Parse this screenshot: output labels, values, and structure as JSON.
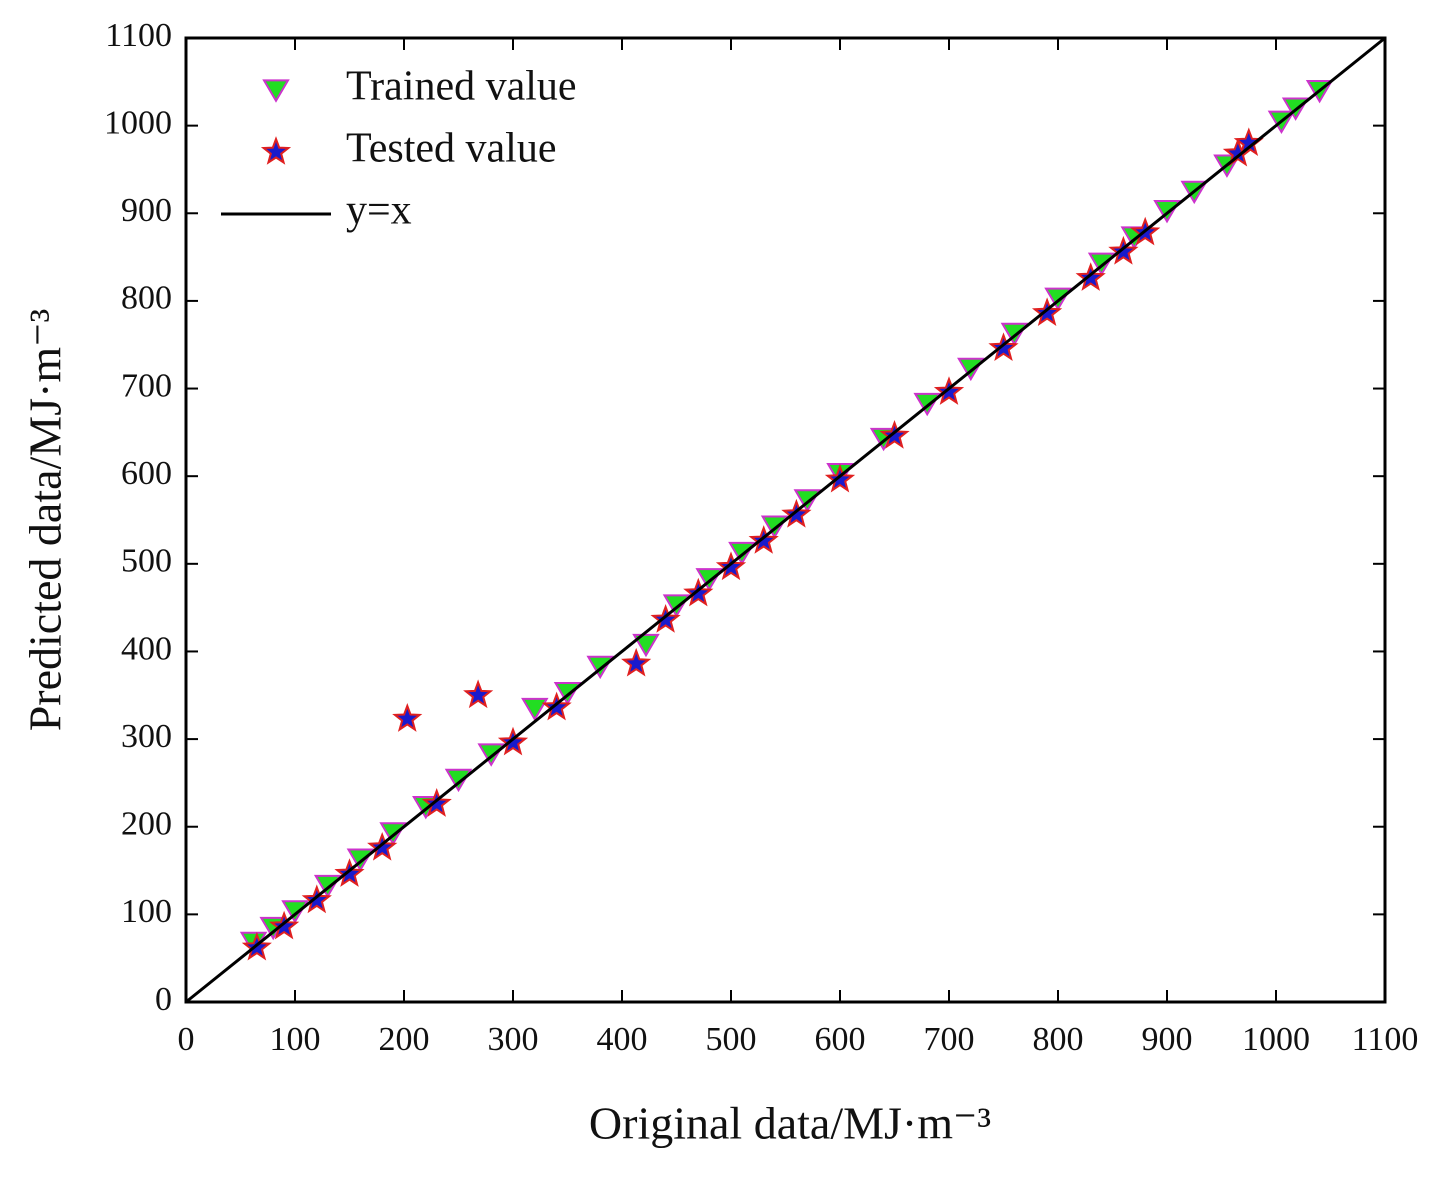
{
  "chart_data": {
    "type": "scatter",
    "x_label": "Original data/MJ·m⁻³",
    "y_label": "Predicted data/MJ·m⁻³",
    "xlim": [
      0,
      1100
    ],
    "ylim": [
      0,
      1100
    ],
    "xticks": [
      0,
      100,
      200,
      300,
      400,
      500,
      600,
      700,
      800,
      900,
      1000,
      1100
    ],
    "yticks": [
      0,
      100,
      200,
      300,
      400,
      500,
      600,
      700,
      800,
      900,
      1000,
      1100
    ],
    "legend": "upper left",
    "series": [
      {
        "name": "Trained value",
        "marker": "triangle-down",
        "color": "#22dd22",
        "edge_color": "#cc33cc",
        "x": [
          62,
          80,
          100,
          130,
          160,
          190,
          220,
          250,
          280,
          320,
          350,
          380,
          422,
          450,
          480,
          510,
          540,
          570,
          600,
          640,
          680,
          720,
          760,
          800,
          840,
          870,
          900,
          925,
          955,
          1005,
          1018,
          1040
        ],
        "values": [
          68,
          85,
          104,
          133,
          163,
          193,
          223,
          254,
          283,
          335,
          353,
          383,
          408,
          453,
          483,
          513,
          543,
          573,
          603,
          643,
          683,
          723,
          763,
          803,
          843,
          873,
          903,
          925,
          955,
          1005,
          1020,
          1040
        ]
      },
      {
        "name": "Tested value",
        "marker": "star",
        "color": "#1a1acc",
        "edge_color": "#e02020",
        "x": [
          65,
          90,
          120,
          150,
          180,
          203,
          230,
          268,
          300,
          340,
          413,
          440,
          470,
          500,
          530,
          560,
          600,
          650,
          700,
          750,
          790,
          830,
          860,
          880,
          965,
          975
        ],
        "values": [
          62,
          86,
          116,
          146,
          176,
          323,
          226,
          350,
          296,
          336,
          386,
          436,
          466,
          496,
          526,
          556,
          596,
          646,
          696,
          746,
          786,
          826,
          856,
          878,
          968,
          980
        ]
      },
      {
        "name": "y=x",
        "marker": "line",
        "color": "#000000",
        "x": [
          0,
          1100
        ],
        "values": [
          0,
          1100
        ]
      }
    ]
  }
}
